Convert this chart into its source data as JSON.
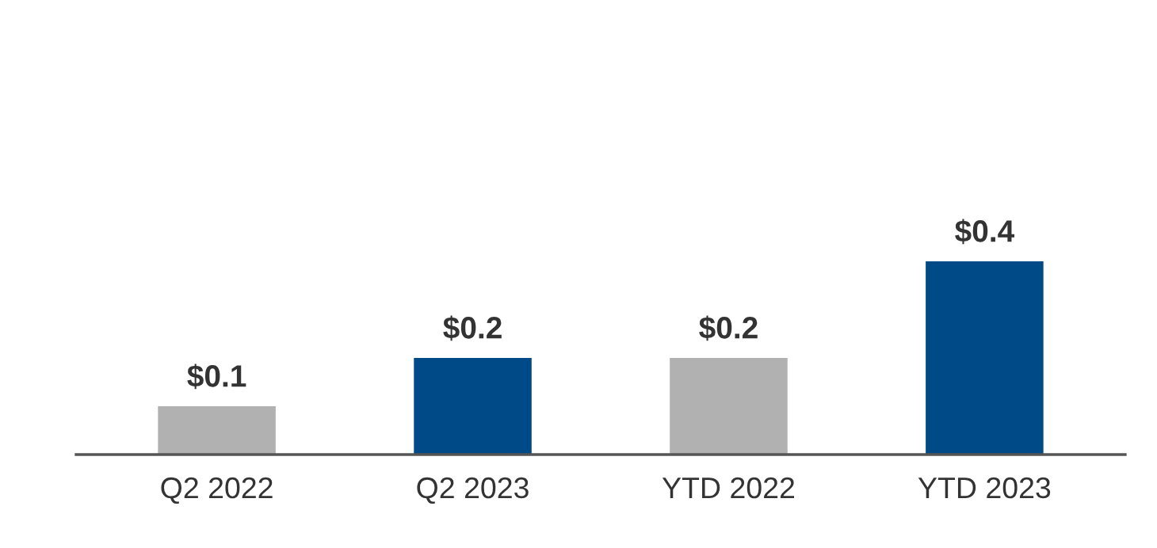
{
  "chart_data": {
    "type": "bar",
    "categories": [
      "Q2 2022",
      "Q2 2023",
      "YTD 2022",
      "YTD 2023"
    ],
    "values": [
      0.1,
      0.2,
      0.2,
      0.4
    ],
    "colors": [
      "#b1b1b1",
      "#004b87",
      "#b1b1b1",
      "#004b87"
    ],
    "value_labels": [
      "$0.1",
      "$0.2",
      "$0.2",
      "$0.4"
    ],
    "grid": false,
    "legend": false
  }
}
